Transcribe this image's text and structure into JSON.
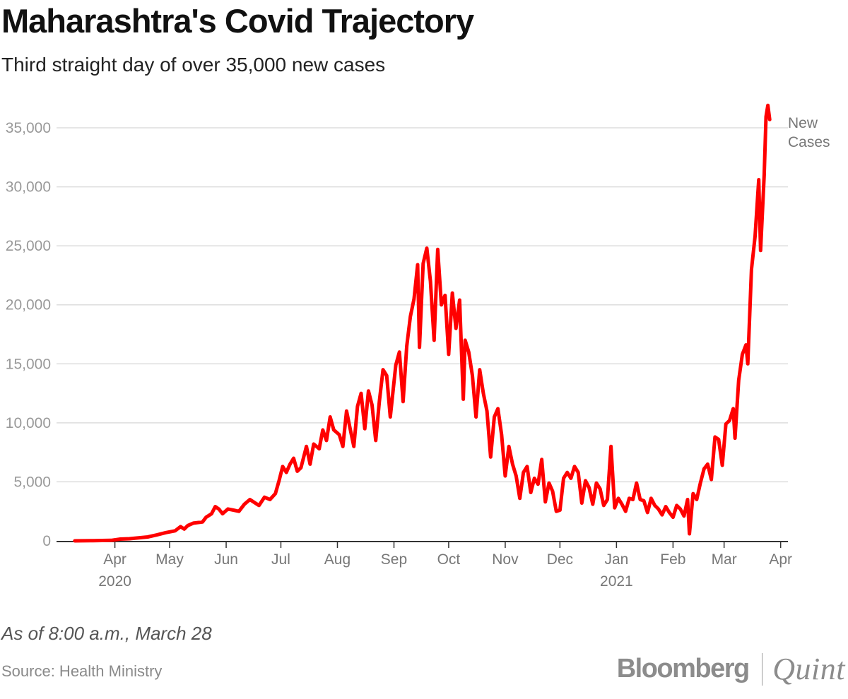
{
  "title": "Maharashtra's Covid Trajectory",
  "subtitle": "Third straight day of over 35,000 new cases",
  "note": "As of 8:00 a.m., March 28",
  "source": "Source: Health Ministry",
  "brand": {
    "left": "Bloomberg",
    "right": "Quint"
  },
  "colors": {
    "line": "#ff0000",
    "grid": "#dddddd",
    "axis": "#333333"
  },
  "chart_data": {
    "type": "line",
    "title": "Maharashtra's Covid Trajectory",
    "subtitle": "Third straight day of over 35,000 new cases",
    "xlabel": "",
    "ylabel": "",
    "ylim": [
      0,
      35000
    ],
    "yticks": [
      {
        "value": 0,
        "label": "0"
      },
      {
        "value": 5000,
        "label": "5,000"
      },
      {
        "value": 10000,
        "label": "10,000"
      },
      {
        "value": 15000,
        "label": "15,000"
      },
      {
        "value": 20000,
        "label": "20,000"
      },
      {
        "value": 25000,
        "label": "25,000"
      },
      {
        "value": 30000,
        "label": "30,000"
      },
      {
        "value": 35000,
        "label": "35,000"
      }
    ],
    "xticks": [
      {
        "day": 22,
        "label": "Apr",
        "sublabel": "2020"
      },
      {
        "day": 52,
        "label": "May"
      },
      {
        "day": 83,
        "label": "Jun"
      },
      {
        "day": 113,
        "label": "Jul"
      },
      {
        "day": 144,
        "label": "Aug"
      },
      {
        "day": 175,
        "label": "Sep"
      },
      {
        "day": 205,
        "label": "Oct"
      },
      {
        "day": 236,
        "label": "Nov"
      },
      {
        "day": 266,
        "label": "Dec"
      },
      {
        "day": 297,
        "label": "Jan",
        "sublabel": "2021"
      },
      {
        "day": 328,
        "label": "Feb"
      },
      {
        "day": 356,
        "label": "Mar"
      },
      {
        "day": 387,
        "label": "Apr"
      }
    ],
    "x_unit": "days since 2020-03-10",
    "xlim": [
      -10,
      391
    ],
    "series": [
      {
        "name": "New Cases",
        "label_lines": [
          "New",
          "Cases"
        ],
        "color": "#ff0000",
        "points": [
          [
            0,
            0
          ],
          [
            10,
            15
          ],
          [
            20,
            40
          ],
          [
            25,
            150
          ],
          [
            30,
            180
          ],
          [
            35,
            250
          ],
          [
            40,
            330
          ],
          [
            45,
            500
          ],
          [
            50,
            700
          ],
          [
            55,
            850
          ],
          [
            58,
            1200
          ],
          [
            60,
            1000
          ],
          [
            62,
            1300
          ],
          [
            65,
            1500
          ],
          [
            70,
            1600
          ],
          [
            72,
            2000
          ],
          [
            75,
            2300
          ],
          [
            77,
            2900
          ],
          [
            79,
            2700
          ],
          [
            81,
            2300
          ],
          [
            84,
            2700
          ],
          [
            87,
            2600
          ],
          [
            90,
            2500
          ],
          [
            93,
            3100
          ],
          [
            96,
            3500
          ],
          [
            99,
            3200
          ],
          [
            101,
            3000
          ],
          [
            104,
            3700
          ],
          [
            107,
            3500
          ],
          [
            110,
            4000
          ],
          [
            112,
            5100
          ],
          [
            114,
            6300
          ],
          [
            116,
            5800
          ],
          [
            118,
            6500
          ],
          [
            120,
            7000
          ],
          [
            122,
            5900
          ],
          [
            124,
            6200
          ],
          [
            127,
            8000
          ],
          [
            129,
            6500
          ],
          [
            131,
            8200
          ],
          [
            134,
            7800
          ],
          [
            136,
            9400
          ],
          [
            138,
            8500
          ],
          [
            140,
            10500
          ],
          [
            142,
            9400
          ],
          [
            145,
            9000
          ],
          [
            147,
            8000
          ],
          [
            149,
            11000
          ],
          [
            151,
            9500
          ],
          [
            153,
            8000
          ],
          [
            155,
            11400
          ],
          [
            157,
            12500
          ],
          [
            159,
            9500
          ],
          [
            161,
            12700
          ],
          [
            163,
            11500
          ],
          [
            165,
            8500
          ],
          [
            167,
            11800
          ],
          [
            169,
            14500
          ],
          [
            171,
            14000
          ],
          [
            173,
            10500
          ],
          [
            176,
            14900
          ],
          [
            178,
            16000
          ],
          [
            180,
            11800
          ],
          [
            182,
            16500
          ],
          [
            184,
            19000
          ],
          [
            186,
            20500
          ],
          [
            188,
            23400
          ],
          [
            189,
            16400
          ],
          [
            191,
            23500
          ],
          [
            193,
            24800
          ],
          [
            195,
            22000
          ],
          [
            197,
            17000
          ],
          [
            199,
            24700
          ],
          [
            201,
            20000
          ],
          [
            203,
            20800
          ],
          [
            205,
            15800
          ],
          [
            207,
            21000
          ],
          [
            209,
            18000
          ],
          [
            211,
            20400
          ],
          [
            213,
            12000
          ],
          [
            214,
            17000
          ],
          [
            216,
            16000
          ],
          [
            218,
            14000
          ],
          [
            220,
            10500
          ],
          [
            222,
            14500
          ],
          [
            224,
            12500
          ],
          [
            226,
            11000
          ],
          [
            228,
            7100
          ],
          [
            230,
            10500
          ],
          [
            232,
            11200
          ],
          [
            234,
            9000
          ],
          [
            236,
            5500
          ],
          [
            238,
            8000
          ],
          [
            240,
            6500
          ],
          [
            242,
            5500
          ],
          [
            244,
            3600
          ],
          [
            246,
            5800
          ],
          [
            248,
            6300
          ],
          [
            250,
            4100
          ],
          [
            252,
            5300
          ],
          [
            254,
            4800
          ],
          [
            256,
            6900
          ],
          [
            258,
            3300
          ],
          [
            260,
            4900
          ],
          [
            262,
            4200
          ],
          [
            264,
            2500
          ],
          [
            266,
            2600
          ],
          [
            268,
            5300
          ],
          [
            270,
            5800
          ],
          [
            272,
            5300
          ],
          [
            274,
            6300
          ],
          [
            276,
            5800
          ],
          [
            278,
            3200
          ],
          [
            280,
            5100
          ],
          [
            282,
            4500
          ],
          [
            284,
            3100
          ],
          [
            286,
            4900
          ],
          [
            288,
            4400
          ],
          [
            290,
            3000
          ],
          [
            292,
            3500
          ],
          [
            294,
            8000
          ],
          [
            296,
            2800
          ],
          [
            298,
            3600
          ],
          [
            300,
            3100
          ],
          [
            302,
            2500
          ],
          [
            304,
            3600
          ],
          [
            306,
            3500
          ],
          [
            308,
            4900
          ],
          [
            310,
            3500
          ],
          [
            312,
            3400
          ],
          [
            314,
            2400
          ],
          [
            316,
            3600
          ],
          [
            318,
            3000
          ],
          [
            320,
            2700
          ],
          [
            322,
            2200
          ],
          [
            324,
            2900
          ],
          [
            326,
            2400
          ],
          [
            328,
            2000
          ],
          [
            330,
            3000
          ],
          [
            332,
            2700
          ],
          [
            334,
            2100
          ],
          [
            336,
            3500
          ],
          [
            337,
            600
          ],
          [
            339,
            4000
          ],
          [
            341,
            3500
          ],
          [
            343,
            4900
          ],
          [
            345,
            6100
          ],
          [
            347,
            6500
          ],
          [
            349,
            5200
          ],
          [
            351,
            8800
          ],
          [
            353,
            8600
          ],
          [
            355,
            6400
          ],
          [
            357,
            9900
          ],
          [
            359,
            10200
          ],
          [
            361,
            11200
          ],
          [
            362,
            8700
          ],
          [
            364,
            13600
          ],
          [
            366,
            15800
          ],
          [
            368,
            16600
          ],
          [
            369,
            15000
          ],
          [
            371,
            23000
          ],
          [
            373,
            25800
          ],
          [
            375,
            30600
          ],
          [
            376,
            24600
          ],
          [
            378,
            31000
          ],
          [
            379,
            35950
          ],
          [
            380,
            36900
          ],
          [
            381,
            35700
          ]
        ]
      }
    ]
  }
}
